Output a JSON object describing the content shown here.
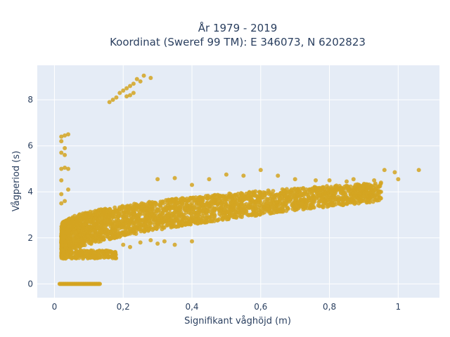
{
  "chart_data": {
    "type": "scatter",
    "title_line1": "År 1979 - 2019",
    "title_line2": "Koordinat (Sweref 99 TM): E 346073, N 6202823",
    "xlabel": "Signifikant våghöjd (m)",
    "ylabel": "Vågperiod (s)",
    "xlim": [
      -0.05,
      1.12
    ],
    "ylim": [
      -0.6,
      9.5
    ],
    "x_ticks": [
      0,
      0.2,
      0.4,
      0.6,
      0.8,
      1
    ],
    "x_tick_labels": [
      "0",
      "0,2",
      "0,4",
      "0,6",
      "0,8",
      "1"
    ],
    "y_ticks": [
      0,
      2,
      4,
      6,
      8
    ],
    "y_tick_labels": [
      "0",
      "2",
      "4",
      "6",
      "8"
    ],
    "grid": true,
    "marker_color": "#d4a421",
    "plot_background": "#e5ecf6",
    "cluster": {
      "x_range": [
        0.02,
        0.95
      ],
      "lower_bound_at_x0": 1.15,
      "upper_bound_at_x0": 2.5,
      "lower_bound_at_x1": 3.6,
      "upper_bound_at_x1": 4.4
    },
    "outliers": [
      {
        "x": 0.24,
        "y": 8.9
      },
      {
        "x": 0.23,
        "y": 8.7
      },
      {
        "x": 0.22,
        "y": 8.6
      },
      {
        "x": 0.21,
        "y": 8.5
      },
      {
        "x": 0.2,
        "y": 8.4
      },
      {
        "x": 0.19,
        "y": 8.3
      },
      {
        "x": 0.18,
        "y": 8.1
      },
      {
        "x": 0.17,
        "y": 8.0
      },
      {
        "x": 0.16,
        "y": 7.9
      },
      {
        "x": 0.26,
        "y": 9.05
      },
      {
        "x": 0.28,
        "y": 8.95
      },
      {
        "x": 0.25,
        "y": 8.8
      },
      {
        "x": 0.22,
        "y": 8.2
      },
      {
        "x": 0.21,
        "y": 8.15
      },
      {
        "x": 0.23,
        "y": 8.3
      },
      {
        "x": 0.02,
        "y": 6.4
      },
      {
        "x": 0.03,
        "y": 6.45
      },
      {
        "x": 0.04,
        "y": 6.5
      },
      {
        "x": 0.02,
        "y": 6.2
      },
      {
        "x": 0.03,
        "y": 5.9
      },
      {
        "x": 0.02,
        "y": 5.7
      },
      {
        "x": 0.03,
        "y": 5.6
      },
      {
        "x": 0.02,
        "y": 5.0
      },
      {
        "x": 0.03,
        "y": 5.05
      },
      {
        "x": 0.04,
        "y": 5.0
      },
      {
        "x": 0.02,
        "y": 4.5
      },
      {
        "x": 0.04,
        "y": 4.1
      },
      {
        "x": 0.02,
        "y": 3.9
      },
      {
        "x": 0.03,
        "y": 3.6
      },
      {
        "x": 0.02,
        "y": 3.5
      },
      {
        "x": 1.06,
        "y": 4.95
      },
      {
        "x": 0.96,
        "y": 4.95
      },
      {
        "x": 0.99,
        "y": 4.85
      },
      {
        "x": 1.0,
        "y": 4.55
      },
      {
        "x": 0.95,
        "y": 4.4
      },
      {
        "x": 0.93,
        "y": 4.5
      },
      {
        "x": 0.91,
        "y": 4.2
      },
      {
        "x": 0.95,
        "y": 4.0
      },
      {
        "x": 0.87,
        "y": 4.55
      },
      {
        "x": 0.85,
        "y": 4.45
      },
      {
        "x": 0.89,
        "y": 3.9
      },
      {
        "x": 0.92,
        "y": 3.85
      },
      {
        "x": 0.6,
        "y": 4.95
      },
      {
        "x": 0.55,
        "y": 4.7
      },
      {
        "x": 0.5,
        "y": 4.75
      },
      {
        "x": 0.45,
        "y": 4.55
      },
      {
        "x": 0.35,
        "y": 4.6
      },
      {
        "x": 0.3,
        "y": 4.55
      },
      {
        "x": 0.4,
        "y": 4.3
      },
      {
        "x": 0.65,
        "y": 4.7
      },
      {
        "x": 0.7,
        "y": 4.55
      },
      {
        "x": 0.76,
        "y": 4.5
      },
      {
        "x": 0.78,
        "y": 4.2
      },
      {
        "x": 0.8,
        "y": 4.5
      },
      {
        "x": 0.25,
        "y": 1.8
      },
      {
        "x": 0.3,
        "y": 1.75
      },
      {
        "x": 0.35,
        "y": 1.7
      },
      {
        "x": 0.32,
        "y": 1.85
      },
      {
        "x": 0.28,
        "y": 1.9
      },
      {
        "x": 0.4,
        "y": 1.85
      },
      {
        "x": 0.2,
        "y": 1.7
      },
      {
        "x": 0.22,
        "y": 1.6
      }
    ],
    "zero_period_band": {
      "x_start": 0.015,
      "x_end": 0.135,
      "y": 0
    }
  }
}
